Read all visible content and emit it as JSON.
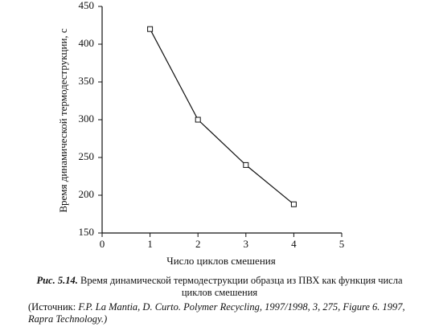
{
  "chart_data": {
    "type": "line",
    "y_label": "Время динамической термодеструкции, с",
    "x_label": "Число циклов смешения",
    "x": [
      1,
      2,
      3,
      4
    ],
    "series": [
      {
        "color": "#111111",
        "values": [
          420,
          300,
          240,
          188
        ]
      }
    ],
    "xlim": [
      0,
      5
    ],
    "xticks": [
      0,
      1,
      2,
      3,
      4,
      5
    ],
    "ylim": [
      150,
      450
    ],
    "yticks": [
      150,
      200,
      250,
      300,
      350,
      400,
      450
    ],
    "grid": false,
    "marker": "square"
  },
  "caption": {
    "label": "Рис. 5.14.",
    "text": "Время динамической термодеструкции образца из ПВХ как функция числа циклов смешения"
  },
  "source": {
    "lead": "(Источник:",
    "text": "F.P. La Mantia, D. Curto. Polymer Recycling, 1997/1998, 3, 275, Figure 6. 1997, Rapra Technology.)"
  }
}
